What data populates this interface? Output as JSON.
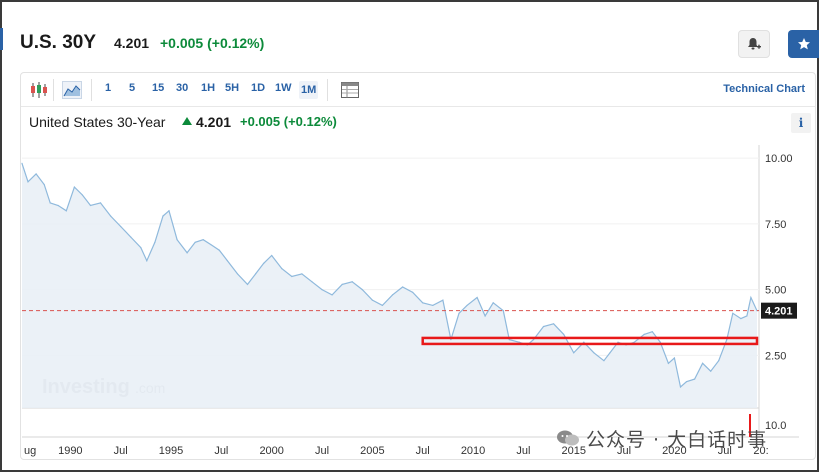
{
  "header": {
    "symbol": "U.S. 30Y",
    "price": "4.201",
    "change": "+0.005 (+0.12%)",
    "bell_icon": "bell-plus-icon",
    "star_icon": "star-icon"
  },
  "toolbar": {
    "candle_icon": "candlestick-icon",
    "area_icon": "area-chart-icon",
    "intervals": [
      "1",
      "5",
      "15",
      "30",
      "1H",
      "5H",
      "1D",
      "1W",
      "1M"
    ],
    "active_interval": "1M",
    "table_icon": "table-icon",
    "technical_chart_label": "Technical Chart"
  },
  "subtitle": {
    "name": "United States 30-Year",
    "price": "4.201",
    "change": "+0.005",
    "change_pct": "(+0.12%)",
    "info_label": "i"
  },
  "watermark": {
    "brand": "Investing",
    "suffix": ".com"
  },
  "footer_overlay": {
    "text": "公众号 · 大白话时事"
  },
  "colors": {
    "accent": "#2a62a6",
    "positive": "#0c8a3a",
    "line": "#8fb9dc",
    "area": "#e7eef6",
    "current_line": "#d9534f",
    "highlight": "#e8191a"
  },
  "chart_data": {
    "type": "area",
    "title": "",
    "xlabel": "",
    "ylabel": "",
    "ylim": [
      0.5,
      10.5
    ],
    "yticks": [
      "10.00",
      "7.50",
      "5.00",
      "2.50"
    ],
    "xticks": [
      "ug",
      "1990",
      "Jul",
      "1995",
      "Jul",
      "2000",
      "Jul",
      "2005",
      "Jul",
      "2010",
      "Jul",
      "2015",
      "Jul",
      "2020",
      "Jul",
      "20:"
    ],
    "x_tick_years": [
      1987.6,
      1990,
      1992.5,
      1995,
      1997.5,
      2000,
      2002.5,
      2005,
      2007.5,
      2010,
      2012.5,
      2015,
      2017.5,
      2020,
      2022.5,
      2024.3
    ],
    "xlim": [
      1987.6,
      2024.2
    ],
    "current_value": "4.201",
    "current_line_value": 4.201,
    "volume_axis_label": "10.0",
    "highlight_band": {
      "x_start": 2007.5,
      "x_end": 2024.1,
      "value": 3.05
    },
    "series": [
      {
        "x": [
          1987.6,
          1987.9,
          1988.3,
          1988.7,
          1989.0,
          1989.4,
          1989.8,
          1990.2,
          1990.6,
          1991.0,
          1991.5,
          1992.0,
          1992.5,
          1993.0,
          1993.5,
          1993.8,
          1994.2,
          1994.6,
          1994.9,
          1995.3,
          1995.8,
          1996.2,
          1996.6,
          1997.0,
          1997.4,
          1997.8,
          1998.3,
          1998.8,
          1999.2,
          1999.6,
          2000.0,
          2000.5,
          2001.0,
          2001.5,
          2002.0,
          2002.5,
          2003.0,
          2003.5,
          2004.0,
          2004.5,
          2005.0,
          2005.5,
          2006.0,
          2006.5,
          2007.0,
          2007.5,
          2008.0,
          2008.5,
          2008.9,
          2009.3,
          2009.7,
          2010.2,
          2010.6,
          2011.0,
          2011.5,
          2011.8,
          2012.3,
          2012.7,
          2013.0,
          2013.5,
          2014.0,
          2014.5,
          2015.0,
          2015.5,
          2016.0,
          2016.5,
          2016.8,
          2017.2,
          2017.6,
          2018.0,
          2018.5,
          2018.9,
          2019.3,
          2019.7,
          2020.0,
          2020.3,
          2020.6,
          2021.0,
          2021.4,
          2021.8,
          2022.2,
          2022.6,
          2022.9,
          2023.3,
          2023.6,
          2023.8,
          2024.1
        ],
        "values": [
          9.8,
          9.1,
          9.4,
          9.0,
          8.3,
          8.2,
          8.0,
          8.9,
          8.6,
          8.2,
          8.3,
          7.8,
          7.4,
          7.0,
          6.6,
          6.1,
          6.8,
          7.8,
          8.0,
          6.9,
          6.4,
          6.8,
          6.9,
          6.7,
          6.5,
          6.1,
          5.6,
          5.2,
          5.6,
          6.0,
          6.3,
          5.8,
          5.5,
          5.6,
          5.3,
          5.0,
          4.8,
          5.2,
          5.3,
          5.0,
          4.6,
          4.4,
          4.8,
          5.1,
          4.9,
          4.5,
          4.4,
          4.6,
          3.1,
          4.1,
          4.4,
          4.7,
          4.0,
          4.5,
          4.2,
          3.1,
          3.0,
          2.9,
          3.1,
          3.6,
          3.7,
          3.3,
          2.6,
          3.0,
          2.6,
          2.3,
          2.6,
          3.0,
          2.9,
          3.0,
          3.3,
          3.4,
          3.0,
          2.2,
          2.4,
          1.3,
          1.5,
          1.6,
          2.2,
          1.9,
          2.3,
          3.1,
          4.1,
          3.9,
          4.0,
          4.7,
          4.2
        ]
      }
    ]
  }
}
